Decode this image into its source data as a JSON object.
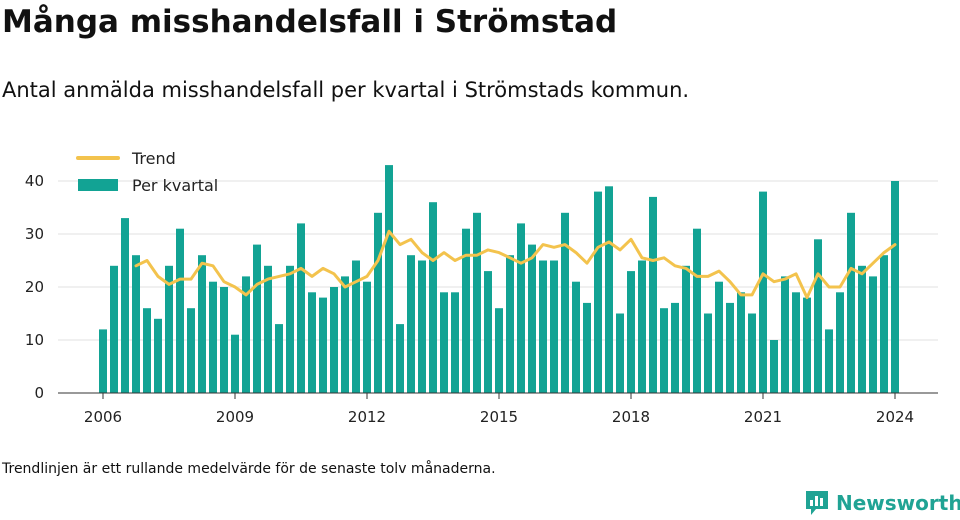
{
  "title": "Många misshandelsfall i Strömstad",
  "subtitle": "Antal anmälda misshandelsfall per kvartal i Strömstads kommun.",
  "footnote": "Trendlinjen är ett rullande medelvärde för de senaste tolv månaderna.",
  "brand": {
    "name": "Newsworthy",
    "icon": "bar-chart-logo-icon",
    "color": "#20a394"
  },
  "chart_data": {
    "type": "bar",
    "start_year": 2006,
    "bar_color": "#12a394",
    "trend_color": "#f3c34d",
    "ylim": [
      0,
      45
    ],
    "yticks": [
      0,
      10,
      20,
      30,
      40
    ],
    "xticks": [
      2006,
      2009,
      2012,
      2015,
      2018,
      2021,
      2024
    ],
    "grid": true,
    "legend_position": "top-left",
    "series": [
      {
        "name": "Per kvartal",
        "type": "bar",
        "values": [
          12,
          24,
          33,
          26,
          16,
          14,
          24,
          31,
          16,
          26,
          21,
          20,
          11,
          22,
          28,
          24,
          13,
          24,
          32,
          19,
          18,
          20,
          22,
          25,
          21,
          34,
          43,
          13,
          26,
          25,
          36,
          19,
          19,
          31,
          34,
          23,
          16,
          26,
          32,
          28,
          25,
          25,
          34,
          21,
          17,
          38,
          39,
          15,
          23,
          25,
          37,
          16,
          17,
          24,
          31,
          15,
          21,
          17,
          19,
          15,
          38,
          10,
          22,
          19,
          18,
          29,
          12,
          19,
          34,
          24,
          22,
          26,
          40
        ]
      },
      {
        "name": "Trend",
        "type": "line",
        "values": [
          null,
          null,
          null,
          24,
          25,
          22,
          20.5,
          21.5,
          21.5,
          24.5,
          24,
          21,
          20,
          18.5,
          20.5,
          21.5,
          22,
          22.5,
          23.5,
          22,
          23.5,
          22.5,
          20,
          21,
          22,
          25,
          30.5,
          28,
          29,
          26.5,
          25,
          26.5,
          25,
          26,
          26,
          27,
          26.5,
          25.5,
          24.5,
          25.5,
          28,
          27.5,
          28,
          26.5,
          24.5,
          27.5,
          28.5,
          27,
          29,
          25.5,
          25,
          25.5,
          24,
          23.5,
          22,
          22,
          23,
          21,
          18.5,
          18.5,
          22.5,
          21,
          21.5,
          22.5,
          18,
          22.5,
          20,
          20,
          23.5,
          22.5,
          24.5,
          26.5,
          28
        ]
      }
    ]
  }
}
